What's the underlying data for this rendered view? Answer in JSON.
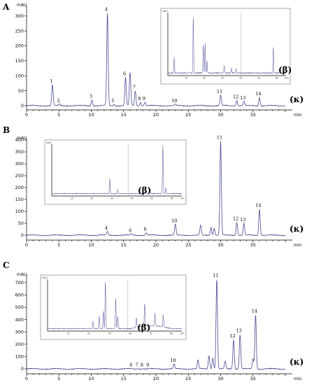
{
  "chart_data": [
    {
      "type": "line",
      "panel": "A",
      "unit": "mAU",
      "xlabel": "min",
      "xlim": [
        0,
        40
      ],
      "ylim": [
        0,
        330
      ],
      "yticks": [
        0,
        50,
        100,
        150,
        200,
        250,
        300
      ],
      "xticks": [
        0,
        5,
        10,
        15,
        20,
        25,
        30,
        35
      ],
      "peaks": [
        {
          "label": "1",
          "x": 4.0,
          "y": 70
        },
        {
          "label": "2",
          "x": 5.1,
          "y": 5
        },
        {
          "label": "3",
          "x": 10.1,
          "y": 20
        },
        {
          "label": "4",
          "x": 12.5,
          "y": 310
        },
        {
          "label": "5",
          "x": 13.5,
          "y": 5
        },
        {
          "label": "6",
          "x": 15.3,
          "y": 95
        },
        {
          "label": "",
          "x": 16.0,
          "y": 110
        },
        {
          "label": "7",
          "x": 16.8,
          "y": 50
        },
        {
          "label": "8",
          "x": 17.6,
          "y": 12
        },
        {
          "label": "9",
          "x": 18.3,
          "y": 12
        },
        {
          "label": "10",
          "x": 23.0,
          "y": 5
        },
        {
          "label": "11",
          "x": 30.0,
          "y": 35
        },
        {
          "label": "12",
          "x": 32.5,
          "y": 18
        },
        {
          "label": "13",
          "x": 33.6,
          "y": 14
        },
        {
          "label": "14",
          "x": 36.0,
          "y": 28
        }
      ],
      "series_tag": "(κ)",
      "inset": {
        "tag": "(β)",
        "unit": "mAU",
        "xlabel": "min",
        "xticks": [
          10,
          20,
          30,
          40,
          50,
          60
        ],
        "peaks": [
          {
            "x": 3.5,
            "y": 0.25
          },
          {
            "x": 14.0,
            "y": 0.92
          },
          {
            "x": 19.5,
            "y": 0.45
          },
          {
            "x": 20.5,
            "y": 0.5
          },
          {
            "x": 21.5,
            "y": 0.2
          },
          {
            "x": 31.0,
            "y": 0.12
          },
          {
            "x": 35.0,
            "y": 0.08
          },
          {
            "x": 37.5,
            "y": 0.07
          },
          {
            "x": 58.0,
            "y": 0.42
          }
        ]
      }
    },
    {
      "type": "line",
      "panel": "B",
      "unit": "mAU",
      "xlabel": "min",
      "xlim": [
        0,
        40
      ],
      "ylim": [
        0,
        400
      ],
      "yticks": [
        0,
        50,
        100,
        150,
        200,
        250,
        300,
        350,
        400
      ],
      "xticks": [
        0,
        5,
        10,
        15,
        20,
        25,
        30,
        35
      ],
      "peaks": [
        {
          "label": "4",
          "x": 12.5,
          "y": 15
        },
        {
          "label": "6",
          "x": 16.2,
          "y": 5
        },
        {
          "label": "8",
          "x": 18.5,
          "y": 10
        },
        {
          "label": "10",
          "x": 23.0,
          "y": 45
        },
        {
          "label": "",
          "x": 26.9,
          "y": 40
        },
        {
          "label": "",
          "x": 28.5,
          "y": 35
        },
        {
          "label": "",
          "x": 29.0,
          "y": 30
        },
        {
          "label": "11",
          "x": 30.0,
          "y": 395
        },
        {
          "label": "12",
          "x": 32.5,
          "y": 55
        },
        {
          "label": "13",
          "x": 33.6,
          "y": 50
        },
        {
          "label": "14",
          "x": 36.0,
          "y": 110
        }
      ],
      "series_tag": "(κ)",
      "inset": {
        "tag": "(β)",
        "unit": "mAU",
        "xlabel": "min",
        "xticks": [
          10,
          20,
          30,
          40,
          50,
          60
        ],
        "peaks": [
          {
            "x": 29.0,
            "y": 0.3
          },
          {
            "x": 33.0,
            "y": 0.08
          },
          {
            "x": 47.0,
            "y": 0.07
          },
          {
            "x": 49.0,
            "y": 0.1
          },
          {
            "x": 55.5,
            "y": 0.95
          },
          {
            "x": 57.0,
            "y": 0.12
          }
        ]
      }
    },
    {
      "type": "line",
      "panel": "C",
      "unit": "mAU",
      "xlabel": "min",
      "xlim": [
        0,
        40
      ],
      "ylim": [
        0,
        750
      ],
      "yticks": [
        0,
        100,
        200,
        300,
        400,
        500,
        600,
        700
      ],
      "xticks": [
        0,
        5,
        10,
        15,
        20,
        25,
        30,
        35
      ],
      "peaks": [
        {
          "label": "6",
          "x": 16.3,
          "y": 3
        },
        {
          "label": "7",
          "x": 17.2,
          "y": 3
        },
        {
          "label": "8",
          "x": 18.0,
          "y": 3
        },
        {
          "label": "9",
          "x": 18.9,
          "y": 3
        },
        {
          "label": "10",
          "x": 22.8,
          "y": 40
        },
        {
          "label": "",
          "x": 26.5,
          "y": 70
        },
        {
          "label": "",
          "x": 28.2,
          "y": 110
        },
        {
          "label": "",
          "x": 28.8,
          "y": 90
        },
        {
          "label": "11",
          "x": 29.4,
          "y": 730
        },
        {
          "label": "",
          "x": 30.7,
          "y": 60
        },
        {
          "label": "12",
          "x": 32.0,
          "y": 240
        },
        {
          "label": "13",
          "x": 33.0,
          "y": 280
        },
        {
          "label": "",
          "x": 35.0,
          "y": 80
        },
        {
          "label": "14",
          "x": 35.4,
          "y": 440
        }
      ],
      "series_tag": "(κ)",
      "inset": {
        "tag": "(β)",
        "unit": "mAU",
        "xlabel": "min",
        "xticks": [
          10,
          20,
          30,
          40,
          50,
          60
        ],
        "peaks": [
          {
            "x": 22.0,
            "y": 0.15
          },
          {
            "x": 25.0,
            "y": 0.25
          },
          {
            "x": 27.0,
            "y": 0.35
          },
          {
            "x": 28.0,
            "y": 0.95
          },
          {
            "x": 33.0,
            "y": 0.6
          },
          {
            "x": 34.0,
            "y": 0.25
          },
          {
            "x": 43.0,
            "y": 0.2
          },
          {
            "x": 47.0,
            "y": 0.45
          },
          {
            "x": 52.0,
            "y": 0.25
          },
          {
            "x": 56.0,
            "y": 0.25
          }
        ]
      }
    }
  ]
}
